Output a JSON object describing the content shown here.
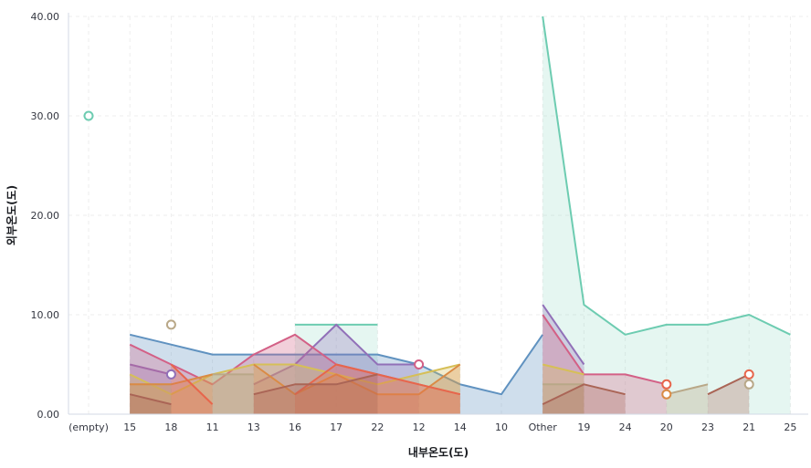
{
  "chart_data": {
    "type": "area",
    "xlabel": "내부온도(도)",
    "ylabel": "외부온도(도)",
    "categories": [
      "(empty)",
      "15",
      "18",
      "11",
      "13",
      "16",
      "17",
      "22",
      "12",
      "14",
      "10",
      "Other",
      "19",
      "24",
      "20",
      "23",
      "21",
      "25"
    ],
    "y_ticks": [
      "0.00",
      "10.00",
      "20.00",
      "30.00",
      "40.00"
    ],
    "ylim": [
      0,
      40
    ],
    "grid": true,
    "legend": "none",
    "colors": [
      "#54b399",
      "#6092c0",
      "#d36086",
      "#9170b8",
      "#ca8eae",
      "#d6bf57",
      "#b9a888",
      "#da8b45",
      "#aa6556",
      "#e7664c"
    ],
    "series": [
      {
        "color": "#6dccb1",
        "fill_opacity": 0.18,
        "segments": [
          [
            [
              5,
              9
            ],
            [
              7,
              9
            ]
          ],
          [
            [
              11,
              40
            ],
            [
              12,
              11
            ],
            [
              13,
              8
            ],
            [
              14,
              9
            ],
            [
              15,
              9
            ],
            [
              16,
              10
            ],
            [
              17,
              8
            ]
          ]
        ],
        "points": [
          [
            0,
            30
          ]
        ]
      },
      {
        "color": "#6092c0",
        "fill_opacity": 0.3,
        "segments": [
          [
            [
              1,
              8
            ],
            [
              2,
              7
            ],
            [
              3,
              6
            ],
            [
              4,
              6
            ],
            [
              5,
              6
            ],
            [
              6,
              6
            ],
            [
              7,
              6
            ],
            [
              8,
              5
            ],
            [
              9,
              3
            ],
            [
              10,
              2
            ],
            [
              11,
              8
            ]
          ]
        ],
        "points": []
      },
      {
        "color": "#9170b8",
        "fill_opacity": 0.3,
        "segments": [
          [
            [
              1,
              5
            ],
            [
              2,
              4
            ]
          ],
          [
            [
              4,
              3
            ],
            [
              5,
              5
            ],
            [
              6,
              9
            ],
            [
              7,
              5
            ],
            [
              8,
              5
            ]
          ],
          [
            [
              11,
              11
            ],
            [
              12,
              5
            ]
          ]
        ],
        "points": [
          [
            2,
            4
          ]
        ]
      },
      {
        "color": "#d36086",
        "fill_opacity": 0.3,
        "segments": [
          [
            [
              1,
              7
            ],
            [
              2,
              5
            ],
            [
              3,
              3
            ],
            [
              4,
              6
            ],
            [
              5,
              8
            ],
            [
              6,
              5
            ],
            [
              7,
              4
            ],
            [
              8,
              3
            ],
            [
              9,
              2
            ]
          ],
          [
            [
              11,
              10
            ],
            [
              12,
              4
            ],
            [
              13,
              4
            ],
            [
              14,
              3
            ]
          ]
        ],
        "points": [
          [
            8,
            5
          ]
        ]
      },
      {
        "color": "#d6bf57",
        "fill_opacity": 0.3,
        "segments": [
          [
            [
              1,
              4
            ],
            [
              2,
              2
            ],
            [
              3,
              4
            ],
            [
              4,
              5
            ],
            [
              5,
              5
            ],
            [
              6,
              4
            ],
            [
              7,
              3
            ],
            [
              8,
              4
            ],
            [
              9,
              5
            ]
          ],
          [
            [
              11,
              5
            ],
            [
              12,
              4
            ]
          ]
        ],
        "points": []
      },
      {
        "color": "#b9a888",
        "fill_opacity": 0.35,
        "segments": [
          [
            [
              1,
              3
            ],
            [
              2,
              3
            ]
          ],
          [
            [
              3,
              4
            ],
            [
              4,
              4
            ]
          ],
          [
            [
              11,
              3
            ],
            [
              12,
              3
            ]
          ],
          [
            [
              14,
              2
            ],
            [
              15,
              3
            ]
          ]
        ],
        "points": [
          [
            2,
            9
          ],
          [
            16,
            3
          ]
        ]
      },
      {
        "color": "#da8b45",
        "fill_opacity": 0.3,
        "segments": [
          [
            [
              1,
              3
            ],
            [
              2,
              3
            ],
            [
              3,
              4
            ]
          ],
          [
            [
              4,
              5
            ],
            [
              5,
              2
            ],
            [
              6,
              4
            ],
            [
              7,
              2
            ],
            [
              8,
              2
            ],
            [
              9,
              5
            ]
          ]
        ],
        "points": [
          [
            14,
            2
          ]
        ]
      },
      {
        "color": "#e7664c",
        "fill_opacity": 0.3,
        "segments": [
          [
            [
              2,
              5
            ],
            [
              3,
              1
            ]
          ],
          [
            [
              5,
              2
            ],
            [
              6,
              5
            ],
            [
              7,
              4
            ],
            [
              8,
              3
            ],
            [
              9,
              2
            ]
          ]
        ],
        "points": [
          [
            14,
            3
          ],
          [
            16,
            4
          ]
        ]
      },
      {
        "color": "#aa6556",
        "fill_opacity": 0.3,
        "segments": [
          [
            [
              1,
              2
            ],
            [
              2,
              1
            ]
          ],
          [
            [
              4,
              2
            ],
            [
              5,
              3
            ],
            [
              6,
              3
            ],
            [
              7,
              4
            ]
          ],
          [
            [
              11,
              1
            ],
            [
              12,
              3
            ],
            [
              13,
              2
            ]
          ],
          [
            [
              15,
              2
            ],
            [
              16,
              4
            ]
          ]
        ],
        "points": []
      }
    ]
  }
}
